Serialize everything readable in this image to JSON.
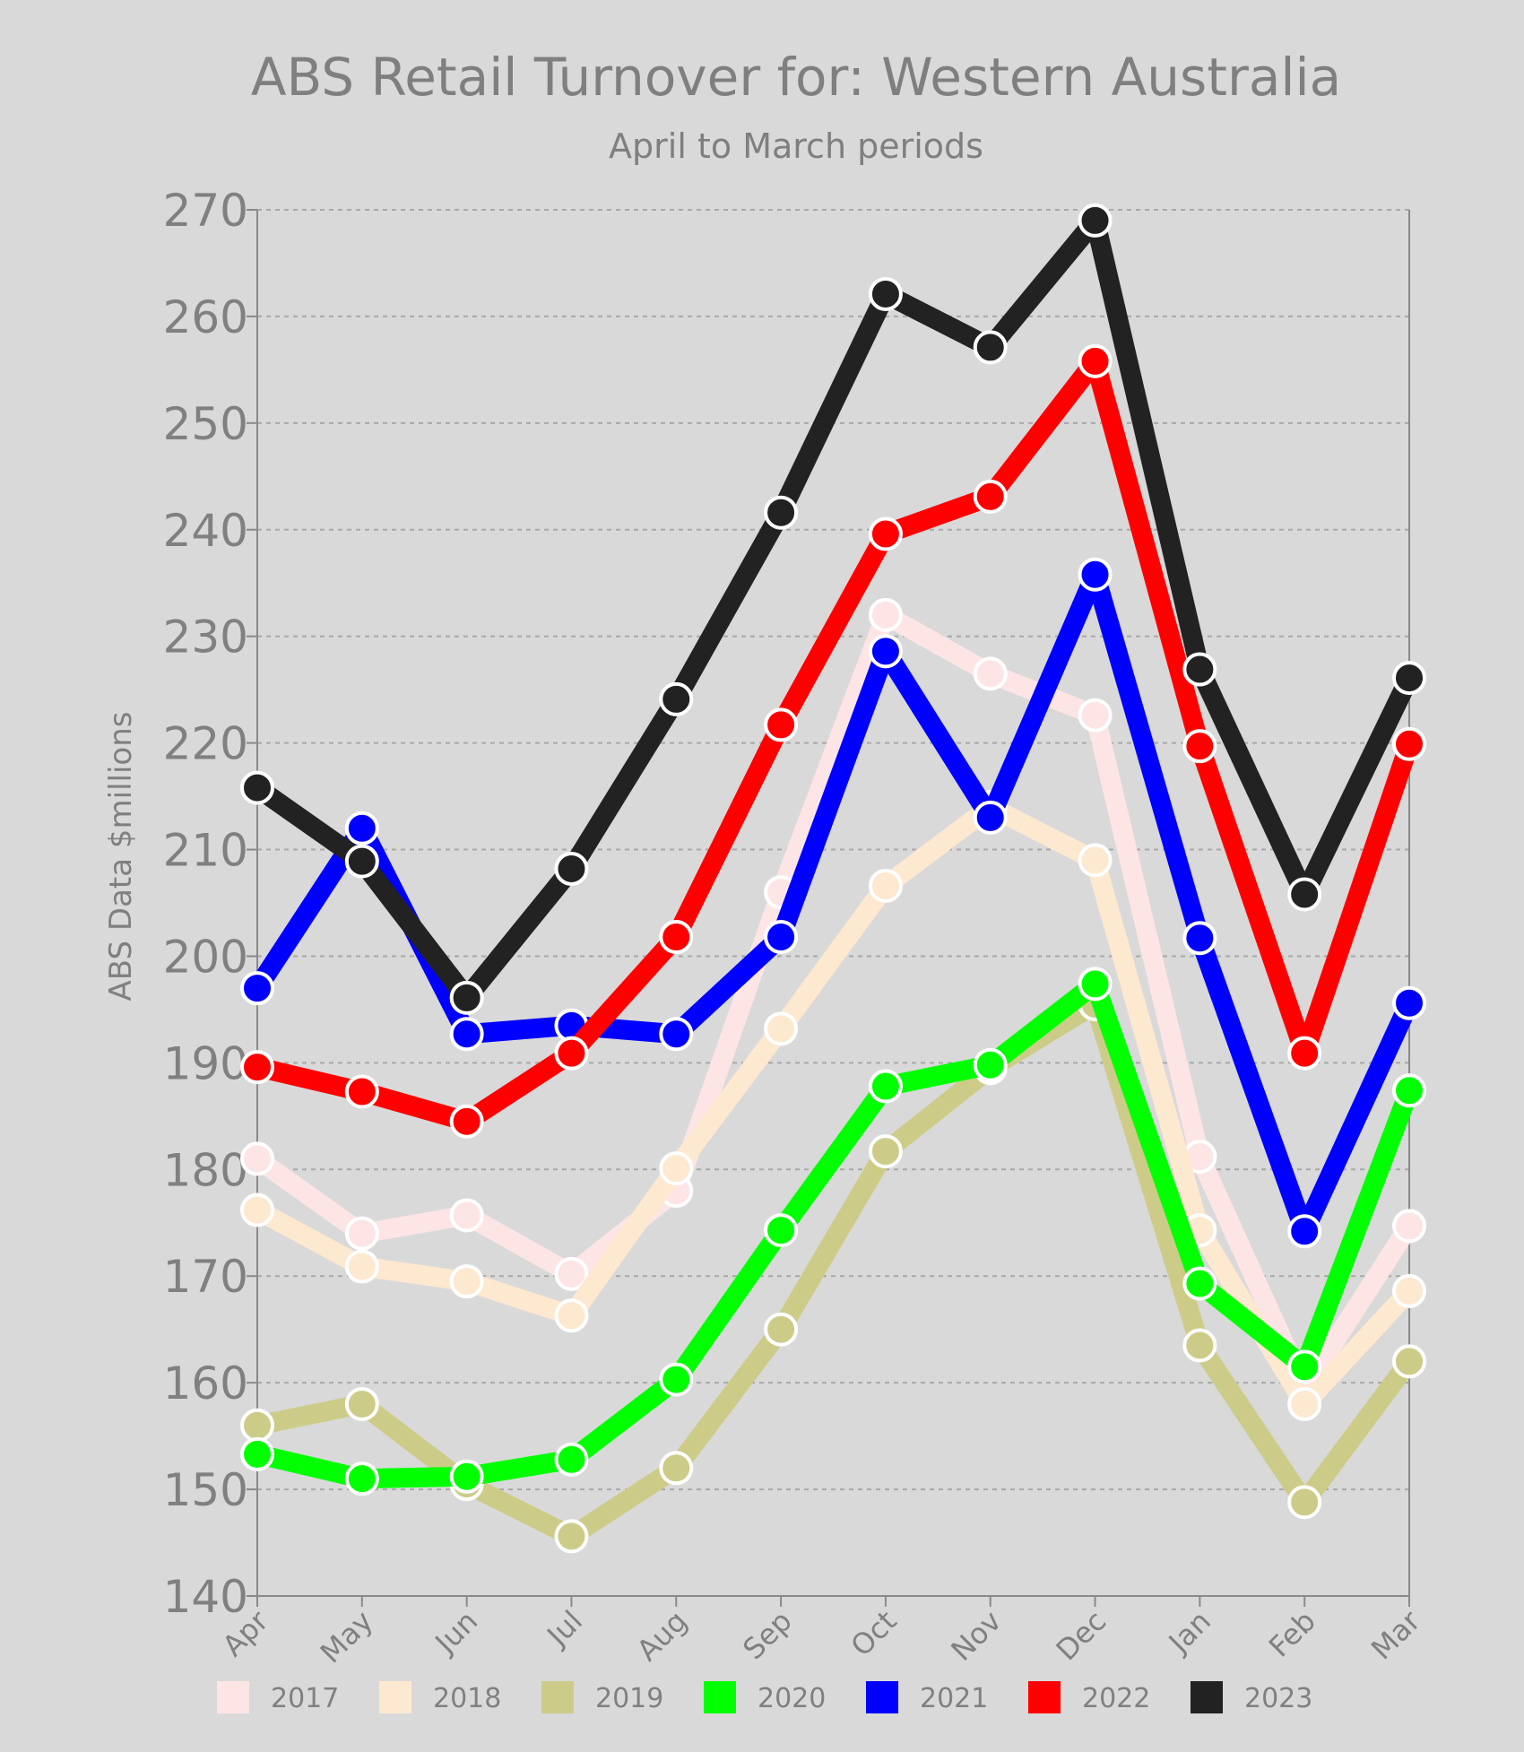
{
  "chart_data": {
    "type": "line",
    "title": "ABS Retail Turnover for: Western Australia",
    "subtitle": "April to March periods",
    "xlabel": "",
    "ylabel": "ABS Data $millions",
    "ylim": [
      140,
      270
    ],
    "yticks": [
      140,
      150,
      160,
      170,
      180,
      190,
      200,
      210,
      220,
      230,
      240,
      250,
      260,
      270
    ],
    "grid": true,
    "legend_position": "bottom",
    "categories": [
      "Apr",
      "May",
      "Jun",
      "Jul",
      "Aug",
      "Sep",
      "Oct",
      "Nov",
      "Dec",
      "Jan",
      "Feb",
      "Mar"
    ],
    "series": [
      {
        "name": "2017",
        "color": "#fde5e5",
        "values": [
          181.0,
          174.0,
          175.7,
          170.2,
          178.0,
          206.0,
          232.0,
          226.5,
          222.6,
          181.2,
          159.5,
          174.7
        ]
      },
      {
        "name": "2018",
        "color": "#fde8d0",
        "values": [
          176.2,
          170.9,
          169.5,
          166.3,
          180.1,
          193.2,
          206.6,
          214.0,
          209.0,
          174.3,
          158.0,
          168.6
        ]
      },
      {
        "name": "2019",
        "color": "#cccc88",
        "values": [
          156.0,
          158.0,
          150.5,
          145.6,
          152.0,
          165.0,
          181.7,
          189.5,
          195.5,
          163.5,
          148.8,
          162.0
        ]
      },
      {
        "name": "2020",
        "color": "#00ff00",
        "values": [
          153.3,
          151.0,
          151.2,
          152.8,
          160.3,
          174.3,
          187.8,
          189.8,
          197.4,
          169.3,
          161.5,
          187.4
        ]
      },
      {
        "name": "2021",
        "color": "#0000ff",
        "values": [
          197.0,
          212.0,
          192.7,
          193.5,
          192.7,
          201.8,
          228.6,
          213.0,
          235.8,
          201.7,
          174.2,
          195.6
        ]
      },
      {
        "name": "2022",
        "color": "#ff0000",
        "values": [
          189.6,
          187.3,
          184.5,
          190.9,
          201.8,
          221.7,
          239.6,
          243.1,
          255.8,
          219.7,
          190.9,
          219.9
        ]
      },
      {
        "name": "2023",
        "color": "#222222",
        "values": [
          215.8,
          208.9,
          196.1,
          208.2,
          224.1,
          241.6,
          262.1,
          257.1,
          269.0,
          226.9,
          205.8,
          226.1
        ]
      }
    ]
  }
}
